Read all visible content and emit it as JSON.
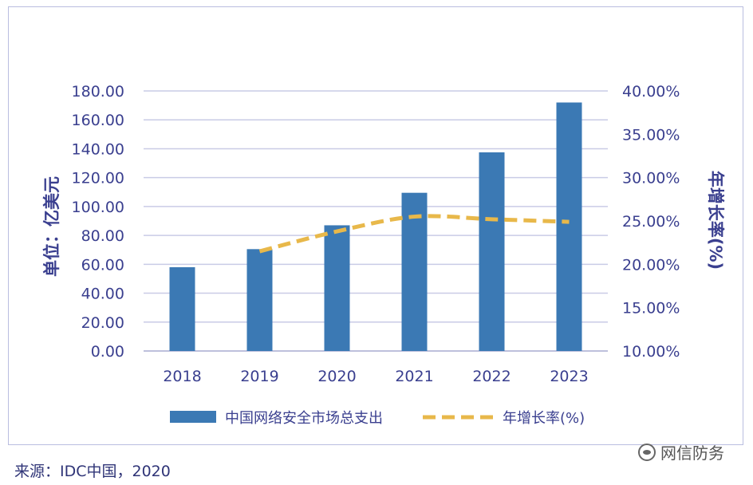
{
  "chart_data": {
    "type": "bar",
    "categories": [
      "2018",
      "2019",
      "2020",
      "2021",
      "2022",
      "2023"
    ],
    "series": [
      {
        "name": "中国网络安全市场总支出",
        "type": "bar",
        "axis": "left",
        "color": "#3b79b4",
        "values": [
          58,
          70.5,
          87,
          109.5,
          137.5,
          172
        ]
      },
      {
        "name": "年增长率(%)",
        "type": "line",
        "style": "dashed",
        "axis": "right",
        "color": "#e8b84a",
        "values": [
          null,
          21.5,
          23.8,
          25.5,
          25.2,
          24.9
        ]
      }
    ],
    "ylabel": "单位：亿美元",
    "ylabel_right": "年增长率(%)",
    "ylim": [
      0,
      180
    ],
    "ylim_right": [
      10,
      40
    ],
    "y_ticks": [
      "0.00",
      "20.00",
      "40.00",
      "60.00",
      "80.00",
      "100.00",
      "120.00",
      "140.00",
      "160.00",
      "180.00"
    ],
    "y_ticks_right": [
      "10.00%",
      "15.00%",
      "20.00%",
      "25.00%",
      "30.00%",
      "35.00%",
      "40.00%"
    ],
    "grid": true,
    "legend_position": "bottom"
  },
  "source_note": "来源：IDC中国，2020",
  "watermark": "网信防务",
  "watermark_icon": "wechat-icon"
}
